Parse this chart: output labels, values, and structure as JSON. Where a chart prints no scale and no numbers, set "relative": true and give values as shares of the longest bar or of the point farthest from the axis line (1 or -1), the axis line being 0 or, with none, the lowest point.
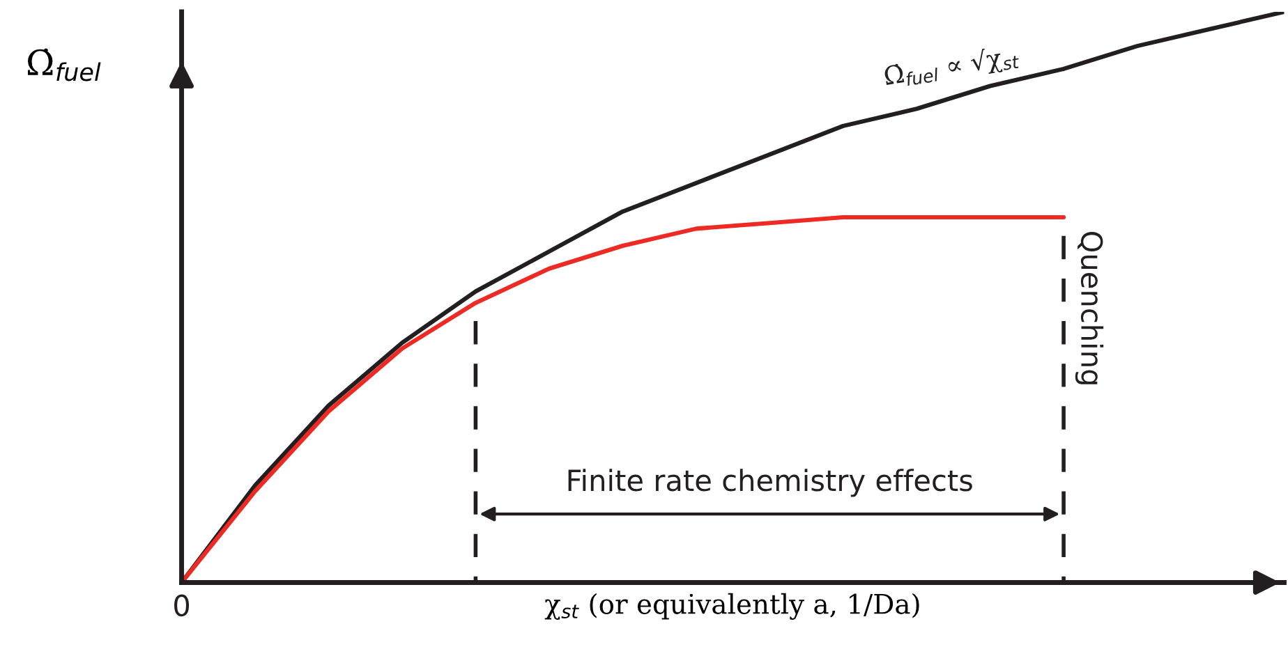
{
  "chart_data": {
    "type": "line",
    "relative": true,
    "xlabel": "χ$_{st}$ (or equivalently a, 1/Da)",
    "ylabel": "Ω̇$_{fuel}$",
    "categories": [
      null,
      null,
      null,
      null,
      null,
      null,
      null,
      null,
      null,
      null,
      null,
      null,
      null,
      null,
      null,
      null
    ],
    "series": [
      {
        "name": "Ω̇$_{fuel}$ ∝ √χ$_{st}$",
        "color": "#231f20",
        "values": [
          0,
          0.17,
          0.31,
          0.42,
          0.51,
          0.58,
          0.65,
          0.7,
          0.75,
          0.8,
          0.83,
          0.87,
          0.9,
          0.94,
          0.97,
          1.0
        ]
      },
      {
        "color": "#ee2a24",
        "values": [
          0,
          0.16,
          0.3,
          0.41,
          0.49,
          0.55,
          0.59,
          0.62,
          0.63,
          0.64,
          0.64,
          0.64,
          0.64,
          null,
          null,
          null
        ]
      }
    ],
    "annotations": [
      "Finite rate chemistry effects",
      "0",
      "Quenching"
    ]
  }
}
